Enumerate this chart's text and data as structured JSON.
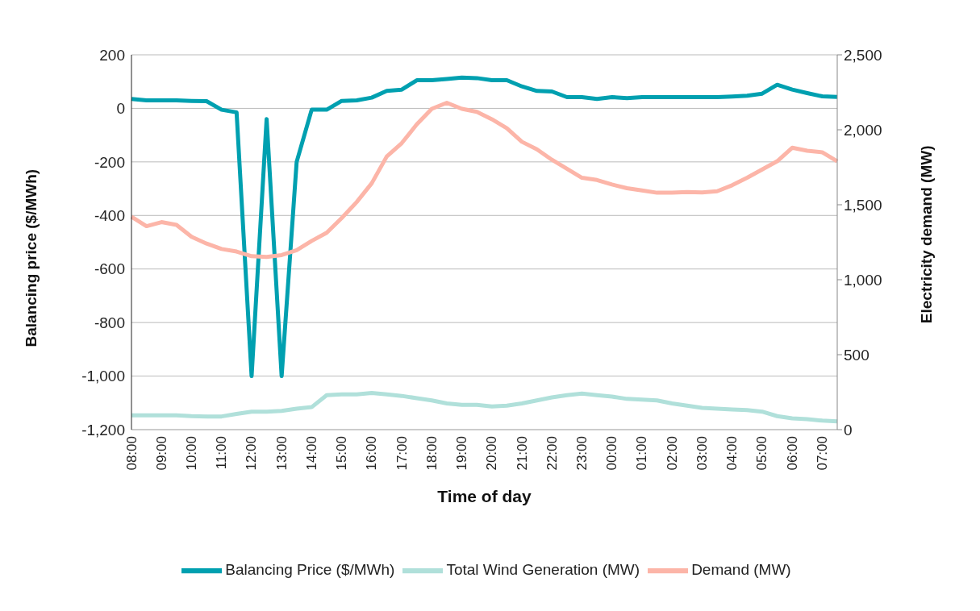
{
  "chart_data": {
    "type": "line",
    "xlabel": "Time of day",
    "ylabel": "Balancing price ($/MWh)",
    "y2label": "Electricity demand (MW)",
    "categories": [
      "08:00",
      null,
      "09:00",
      null,
      "10:00",
      null,
      "11:00",
      null,
      "12:00",
      null,
      "13:00",
      null,
      "14:00",
      null,
      "15:00",
      null,
      "16:00",
      null,
      "17:00",
      null,
      "18:00",
      null,
      "19:00",
      null,
      "20:00",
      null,
      "21:00",
      null,
      "22:00",
      null,
      "23:00",
      null,
      "00:00",
      null,
      "01:00",
      null,
      "02:00",
      null,
      "03:00",
      null,
      "04:00",
      null,
      "05:00",
      null,
      "06:00",
      null,
      "07:00",
      null
    ],
    "series": [
      {
        "name": "Balancing Price ($/MWh)",
        "color": "#00a0b0",
        "values": [
          35,
          30,
          30,
          30,
          28,
          27,
          -5,
          -15,
          -1000,
          -40,
          -1000,
          -200,
          -5,
          -5,
          28,
          30,
          40,
          65,
          70,
          105,
          105,
          110,
          115,
          113,
          105,
          105,
          82,
          65,
          63,
          42,
          42,
          35,
          42,
          38,
          42,
          42,
          42,
          42,
          42,
          42,
          44,
          47,
          55,
          88,
          70,
          57,
          45,
          43
        ]
      },
      {
        "name": "Total Wind Generation (MW)",
        "color": "#b0e0da",
        "axis": "y2",
        "values": [
          95,
          95,
          95,
          95,
          90,
          88,
          88,
          105,
          120,
          120,
          125,
          140,
          150,
          230,
          235,
          235,
          245,
          235,
          225,
          210,
          195,
          175,
          165,
          165,
          155,
          160,
          175,
          195,
          215,
          230,
          240,
          230,
          220,
          205,
          200,
          195,
          175,
          160,
          145,
          140,
          135,
          130,
          120,
          90,
          75,
          70,
          60,
          55
        ]
      },
      {
        "name": "Demand (MW)",
        "color": "#fcb5a8",
        "axis": "y2",
        "values": [
          1420,
          1357,
          1384,
          1366,
          1286,
          1241,
          1205,
          1188,
          1157,
          1152,
          1164,
          1197,
          1259,
          1313,
          1411,
          1518,
          1643,
          1822,
          1911,
          2036,
          2140,
          2180,
          2140,
          2120,
          2070,
          2010,
          1920,
          1870,
          1800,
          1740,
          1680,
          1665,
          1635,
          1610,
          1595,
          1580,
          1580,
          1585,
          1582,
          1590,
          1630,
          1680,
          1735,
          1790,
          1880,
          1860,
          1850,
          1790
        ]
      }
    ],
    "ylim": [
      -1200,
      200
    ],
    "yticks": [
      {
        "value": -1200,
        "label": "-1,200"
      },
      {
        "value": -1000,
        "label": "-1,000"
      },
      -800,
      -600,
      -400,
      -200,
      0,
      200
    ],
    "y2lim": [
      0,
      2500
    ],
    "y2ticks": [
      0,
      500,
      {
        "value": 1000,
        "label": "1,000"
      },
      {
        "value": 1500,
        "label": "1,500"
      },
      {
        "value": 2000,
        "label": "2,000"
      },
      {
        "value": 2500,
        "label": "2,500"
      }
    ],
    "grid": "y",
    "legend": "bottom",
    "marker": "none",
    "line_style": "solid"
  }
}
